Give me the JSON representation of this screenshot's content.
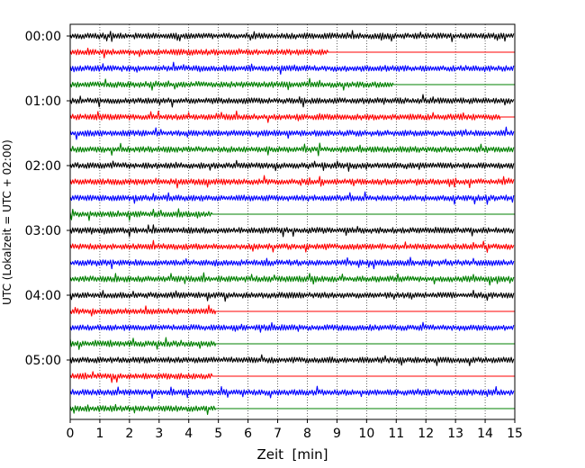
{
  "chart_data": {
    "type": "line",
    "title": "",
    "xlabel": "Zeit  [min]",
    "ylabel": "UTC (Lokalzeit = UTC + 02:00)",
    "xlim": [
      0,
      15
    ],
    "x_ticks": [
      "0",
      "1",
      "2",
      "3",
      "4",
      "5",
      "6",
      "7",
      "8",
      "9",
      "10",
      "11",
      "12",
      "13",
      "14",
      "15"
    ],
    "y_tick_labels": [
      "00:00",
      "01:00",
      "02:00",
      "03:00",
      "04:00",
      "05:00"
    ],
    "x_grid": true,
    "line_interval_minutes": 15,
    "colors": [
      "#000000",
      "#ff0000",
      "#0000ff",
      "#008000"
    ],
    "series": [
      {
        "start": "00:00",
        "color": "#000000",
        "noisy_until_min": 15.0
      },
      {
        "start": "00:15",
        "color": "#ff0000",
        "noisy_until_min": 8.7
      },
      {
        "start": "00:30",
        "color": "#0000ff",
        "noisy_until_min": 15.0
      },
      {
        "start": "00:45",
        "color": "#008000",
        "noisy_until_min": 10.9
      },
      {
        "start": "01:00",
        "color": "#000000",
        "noisy_until_min": 15.0
      },
      {
        "start": "01:15",
        "color": "#ff0000",
        "noisy_until_min": 14.5
      },
      {
        "start": "01:30",
        "color": "#0000ff",
        "noisy_until_min": 15.0
      },
      {
        "start": "01:45",
        "color": "#008000",
        "noisy_until_min": 15.0
      },
      {
        "start": "02:00",
        "color": "#000000",
        "noisy_until_min": 15.0
      },
      {
        "start": "02:15",
        "color": "#ff0000",
        "noisy_until_min": 15.0
      },
      {
        "start": "02:30",
        "color": "#0000ff",
        "noisy_until_min": 15.0
      },
      {
        "start": "02:45",
        "color": "#008000",
        "noisy_until_min": 4.8
      },
      {
        "start": "03:00",
        "color": "#000000",
        "noisy_until_min": 15.0
      },
      {
        "start": "03:15",
        "color": "#ff0000",
        "noisy_until_min": 15.0
      },
      {
        "start": "03:30",
        "color": "#0000ff",
        "noisy_until_min": 15.0
      },
      {
        "start": "03:45",
        "color": "#008000",
        "noisy_until_min": 15.0
      },
      {
        "start": "04:00",
        "color": "#000000",
        "noisy_until_min": 15.0
      },
      {
        "start": "04:15",
        "color": "#ff0000",
        "noisy_until_min": 4.9
      },
      {
        "start": "04:30",
        "color": "#0000ff",
        "noisy_until_min": 15.0
      },
      {
        "start": "04:45",
        "color": "#008000",
        "noisy_until_min": 4.9
      },
      {
        "start": "05:00",
        "color": "#000000",
        "noisy_until_min": 15.0
      },
      {
        "start": "05:15",
        "color": "#ff0000",
        "noisy_until_min": 4.8
      },
      {
        "start": "05:30",
        "color": "#0000ff",
        "noisy_until_min": 15.0
      },
      {
        "start": "05:45",
        "color": "#008000",
        "noisy_until_min": 4.9
      }
    ]
  }
}
